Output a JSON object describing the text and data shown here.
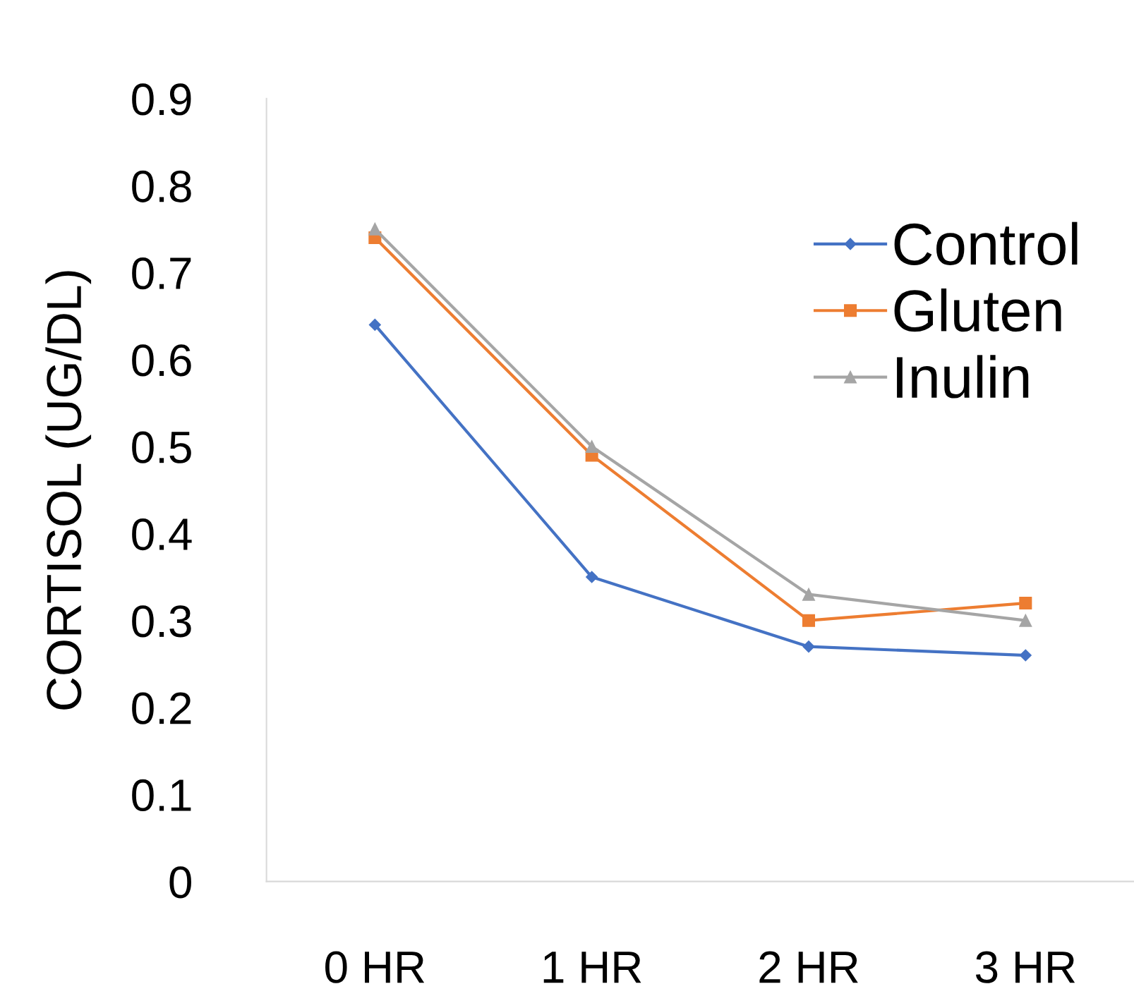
{
  "chart_data": {
    "type": "line",
    "ylabel": "CORTISOL (UG/DL)",
    "categories": [
      "0 HR",
      "1 HR",
      "2 HR",
      "3 HR"
    ],
    "series": [
      {
        "name": "Control",
        "color": "#4472c4",
        "marker": "diamond",
        "values": [
          0.64,
          0.35,
          0.27,
          0.26
        ]
      },
      {
        "name": "Gluten",
        "color": "#ed7d31",
        "marker": "square",
        "values": [
          0.74,
          0.49,
          0.3,
          0.32
        ]
      },
      {
        "name": "Inulin",
        "color": "#a5a5a5",
        "marker": "triangle",
        "values": [
          0.75,
          0.5,
          0.33,
          0.3
        ]
      }
    ],
    "ylim": [
      0,
      0.9
    ],
    "yticks": [
      0,
      0.1,
      0.2,
      0.3,
      0.4,
      0.5,
      0.6,
      0.7,
      0.8,
      0.9
    ],
    "grid": false,
    "legend": "top right"
  }
}
